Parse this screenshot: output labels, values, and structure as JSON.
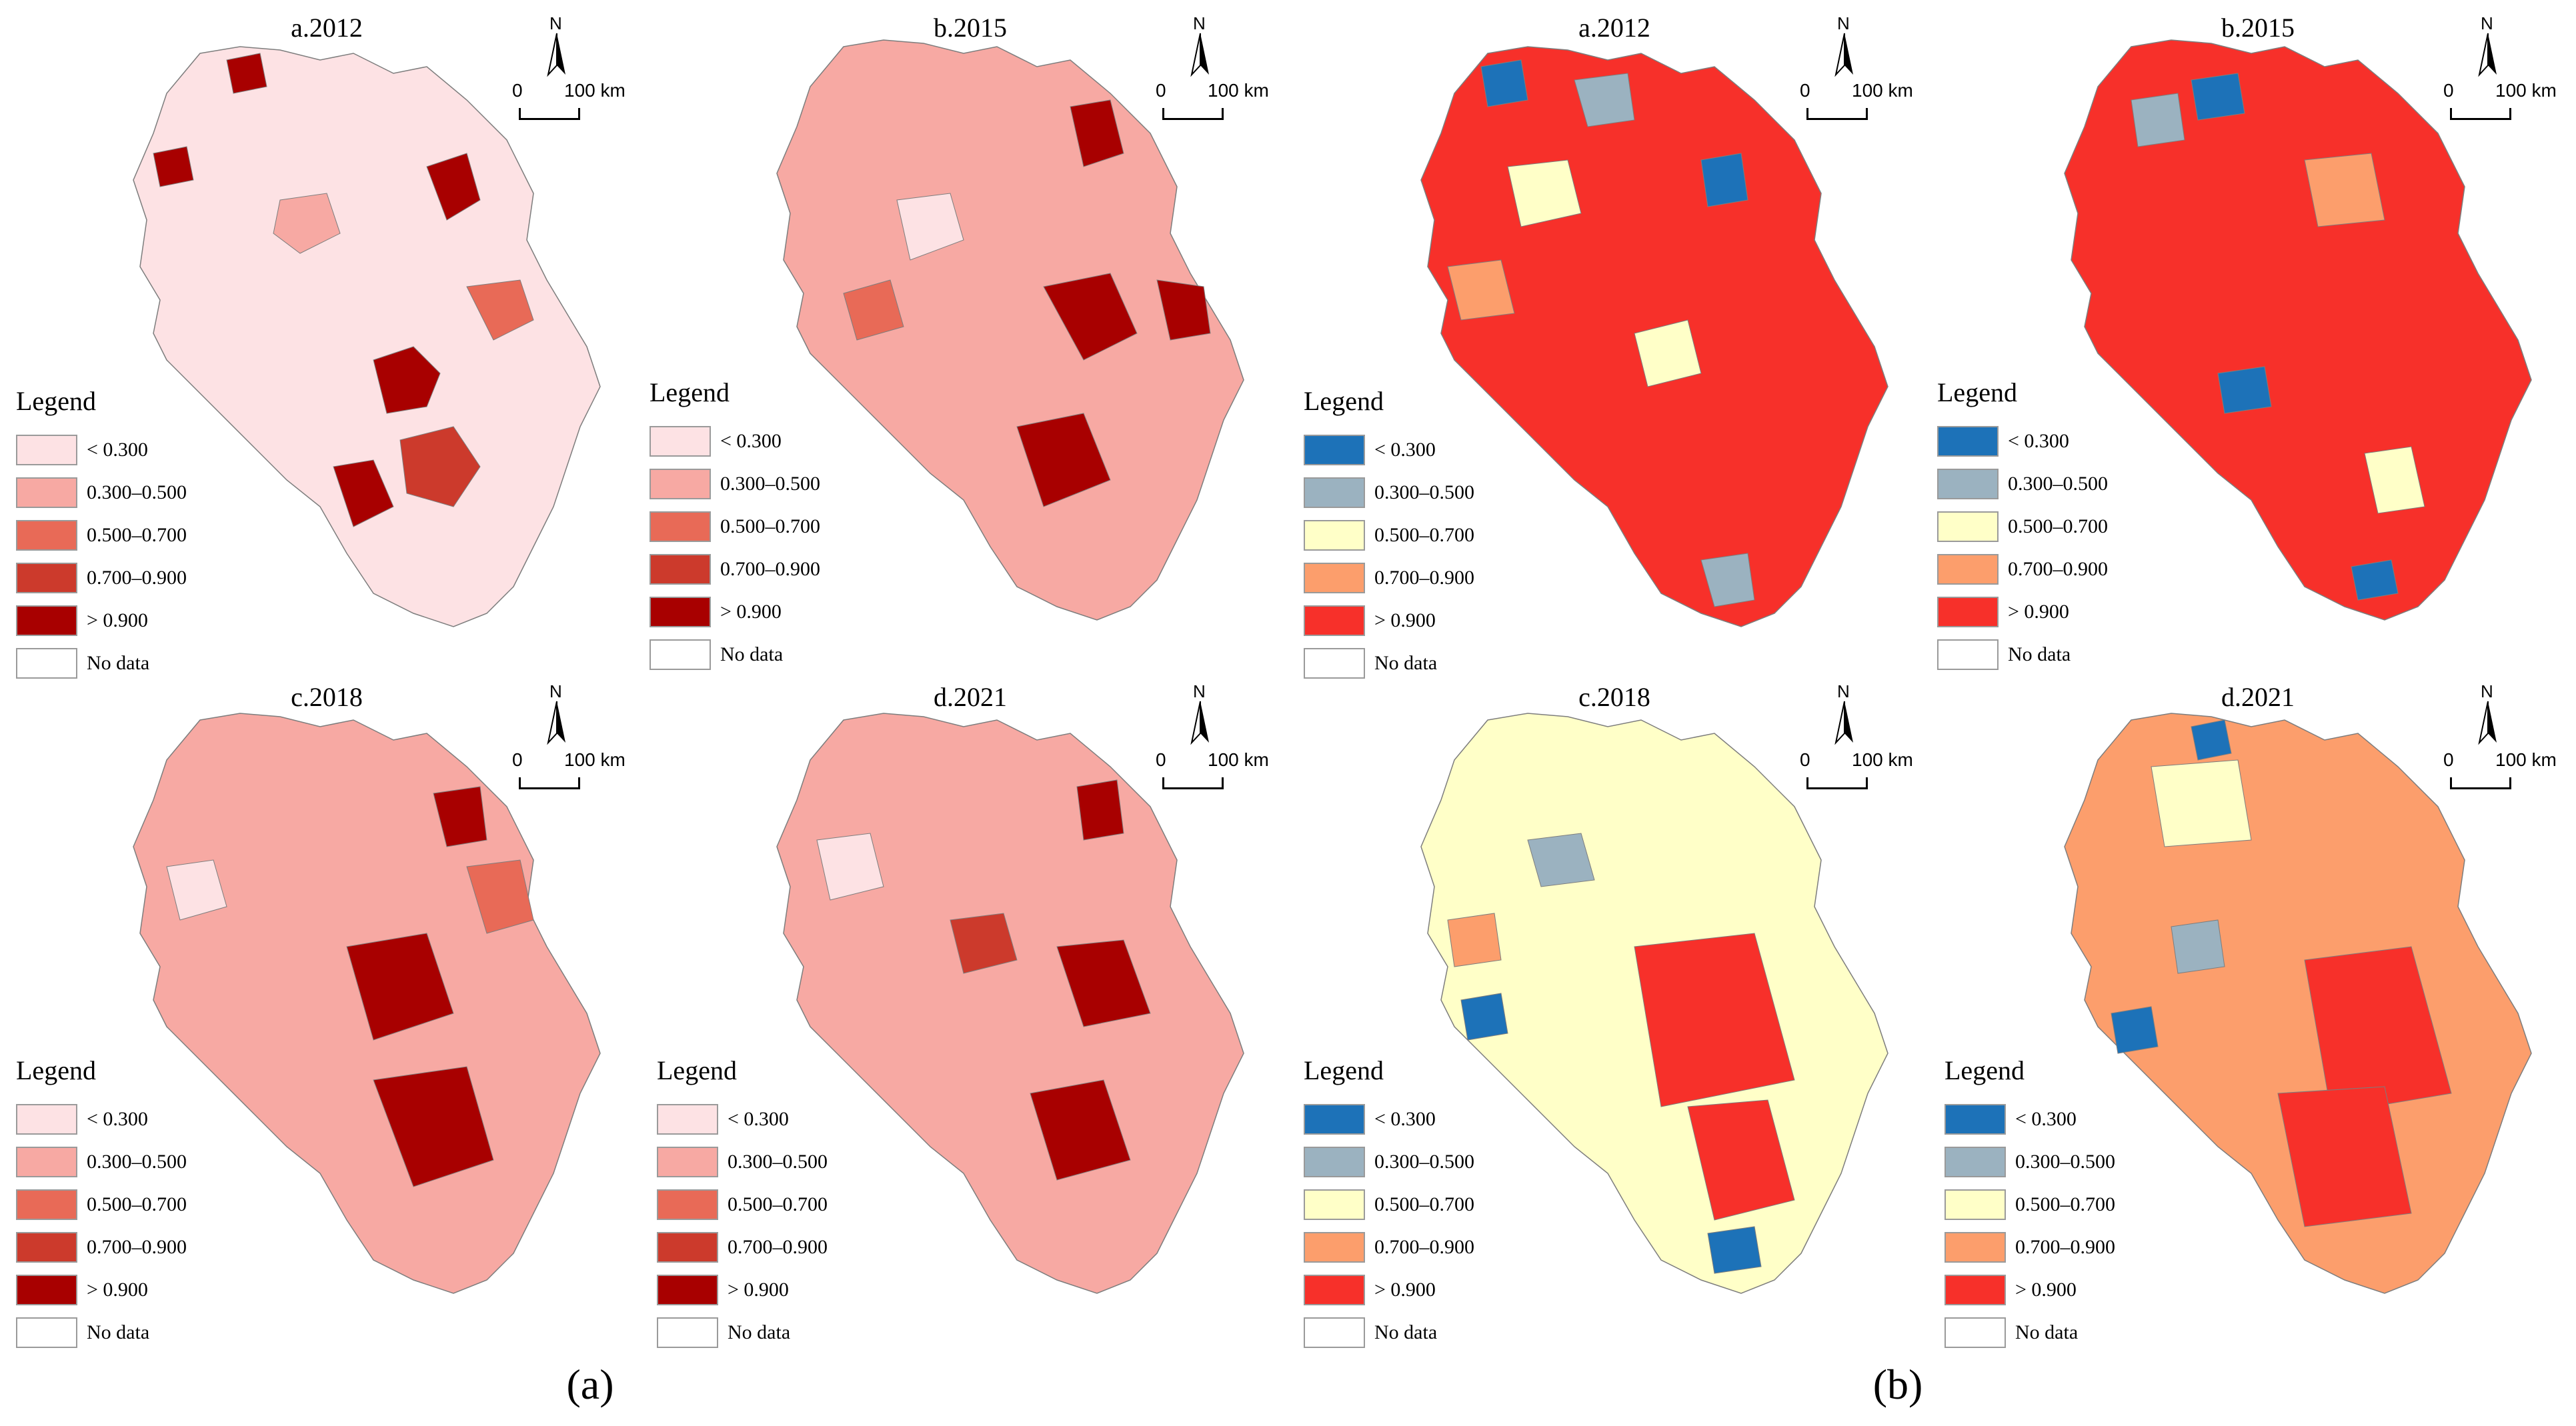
{
  "colors": {
    "a": [
      "#fde2e4",
      "#f7a9a3",
      "#e86a57",
      "#cc3a2c",
      "#a80000",
      "#ffffff"
    ],
    "b": [
      "#1d72b8",
      "#9bb2c0",
      "#ffffc8",
      "#fc9e6c",
      "#f7302a",
      "#ffffff"
    ]
  },
  "legend": {
    "title": "Legend",
    "labels_a": [
      "< 0.300",
      "0.300–0.500",
      "0.500–0.700",
      "0.700–0.900",
      "> 0.900",
      "No data"
    ],
    "labels_b": [
      "<  0.300",
      "0.300–0.500",
      "0.500–0.700",
      "0.700–0.900",
      ">  0.900",
      "No data"
    ]
  },
  "north_label": "N",
  "scale": {
    "zero": "0",
    "distance": "100 km"
  },
  "panels": {
    "a": {
      "letter": "(a)",
      "maps": [
        {
          "title": "a.2012"
        },
        {
          "title": "b.2015"
        },
        {
          "title": "c.2018"
        },
        {
          "title": "d.2021"
        }
      ]
    },
    "b": {
      "letter": "(b)",
      "maps": [
        {
          "title": "a.2012"
        },
        {
          "title": "b.2015"
        },
        {
          "title": "c.2018"
        },
        {
          "title": "d.2021"
        }
      ]
    }
  }
}
